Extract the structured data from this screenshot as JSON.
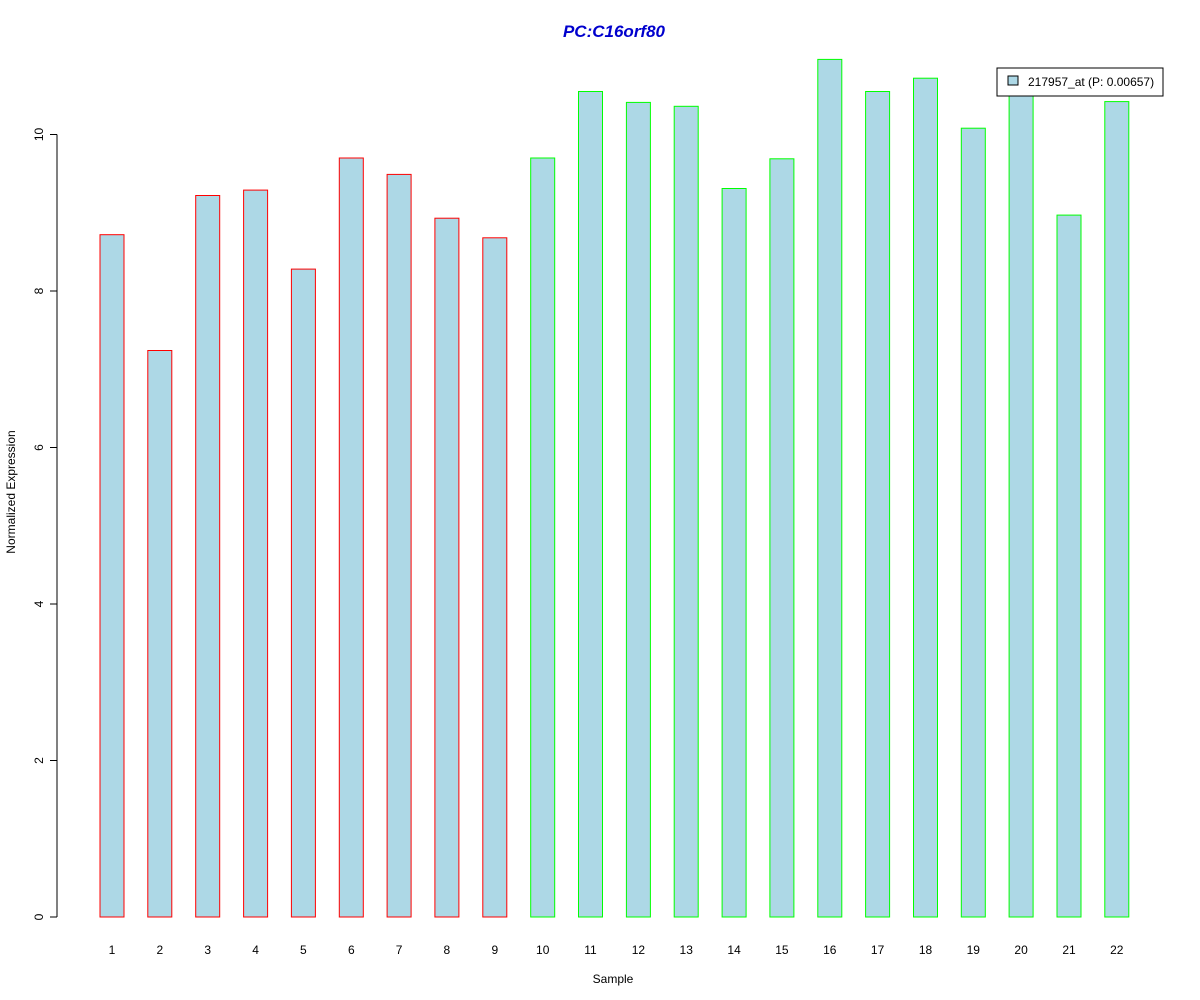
{
  "chart_data": {
    "type": "bar",
    "title": "PC:C16orf80",
    "xlabel": "Sample",
    "ylabel": "Normalized Expression",
    "ylim": [
      0,
      11
    ],
    "y_ticks": [
      "0",
      "2",
      "4",
      "6",
      "8",
      "10"
    ],
    "categories": [
      "1",
      "2",
      "3",
      "4",
      "5",
      "6",
      "7",
      "8",
      "9",
      "10",
      "11",
      "12",
      "13",
      "14",
      "15",
      "16",
      "17",
      "18",
      "19",
      "20",
      "21",
      "22"
    ],
    "series": [
      {
        "name": "217957_at (P: 0.00657)",
        "values": [
          8.72,
          7.24,
          9.22,
          9.29,
          8.28,
          9.7,
          9.49,
          8.93,
          8.68,
          9.7,
          10.55,
          10.41,
          10.36,
          9.31,
          9.69,
          10.96,
          10.55,
          10.72,
          10.08,
          10.59,
          8.97,
          10.42
        ]
      }
    ],
    "groups": [
      "red",
      "red",
      "red",
      "red",
      "red",
      "red",
      "red",
      "red",
      "red",
      "green",
      "green",
      "green",
      "green",
      "green",
      "green",
      "green",
      "green",
      "green",
      "green",
      "green",
      "green",
      "green"
    ],
    "grid": false,
    "legend_position": "top-right",
    "colors": {
      "bar_fill": "#add8e6",
      "group_outline": {
        "red": "#ff0000",
        "green": "#00ff00"
      },
      "title": "#0000cd",
      "axis": "#000000"
    }
  }
}
